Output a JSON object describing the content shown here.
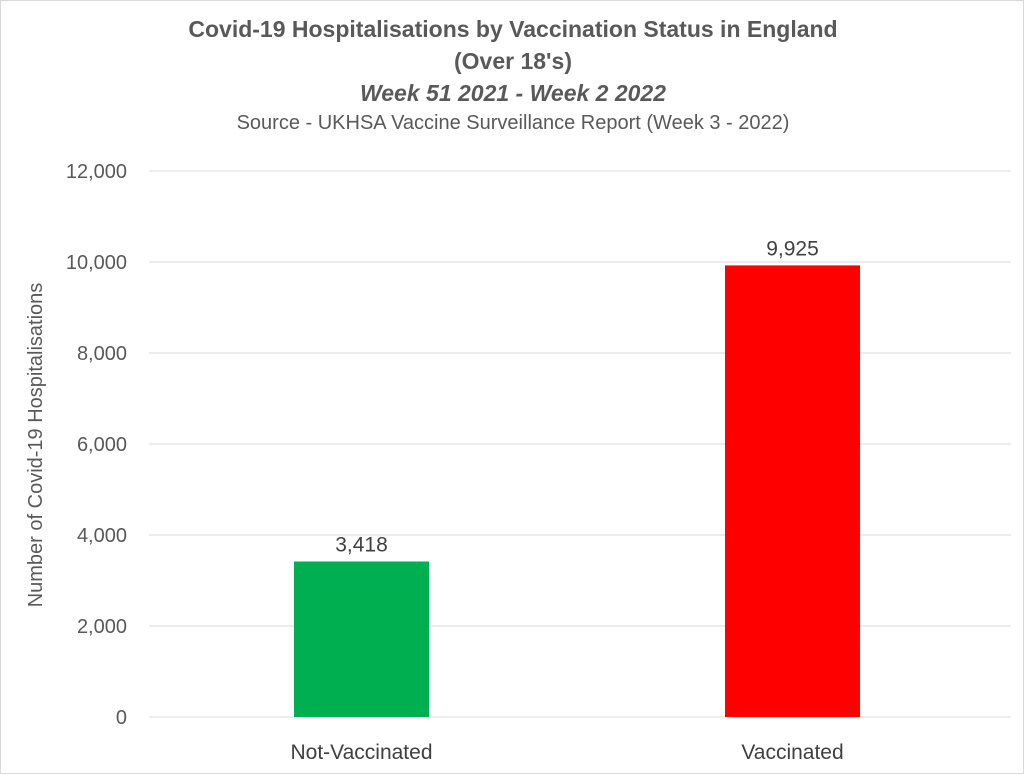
{
  "chart_data": {
    "type": "bar",
    "title": "Covid-19 Hospitalisations by Vaccination Status in England",
    "title_line2": "(Over 18's)",
    "subtitle": "Week 51 2021 - Week 2 2022",
    "source": "Source - UKHSA Vaccine Surveillance Report (Week 3 - 2022)",
    "xlabel": "",
    "ylabel": "Number of Covid-19 Hospitalisations",
    "categories": [
      "Not-Vaccinated",
      "Vaccinated"
    ],
    "values": [
      3418,
      9925
    ],
    "value_labels": [
      "3,418",
      "9,925"
    ],
    "bar_colors": [
      "#00b050",
      "#ff0000"
    ],
    "ylim": [
      0,
      12000
    ],
    "yticks": [
      0,
      2000,
      4000,
      6000,
      8000,
      10000,
      12000
    ],
    "ytick_labels": [
      "0",
      "2,000",
      "4,000",
      "6,000",
      "8,000",
      "10,000",
      "12,000"
    ],
    "grid": true,
    "legend": "none"
  }
}
